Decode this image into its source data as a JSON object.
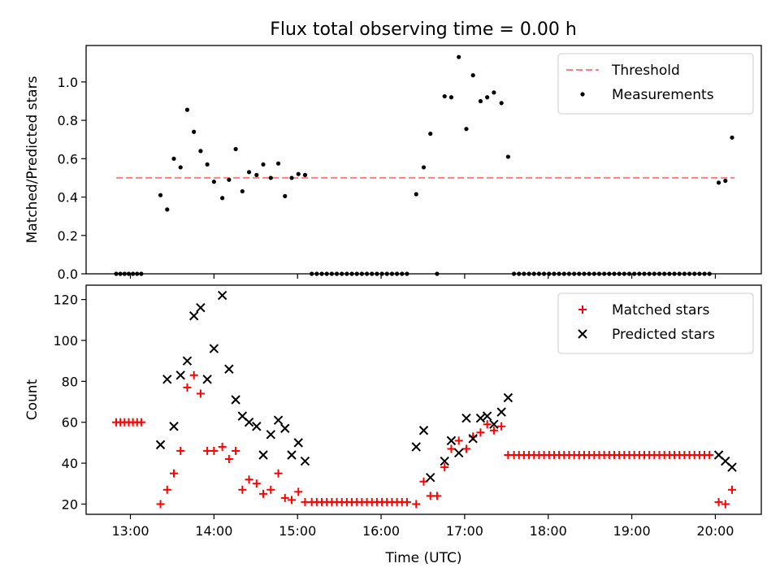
{
  "title": "Flux total observing time = 0.00 h",
  "chart_data": [
    {
      "type": "scatter",
      "ylabel": "Matched/Predicted stars",
      "xlim": [
        12.47,
        20.55
      ],
      "ylim": [
        0,
        1.19
      ],
      "yticks": [
        0.0,
        0.2,
        0.4,
        0.6,
        0.8,
        1.0
      ],
      "yticklabels": [
        "0.0",
        "0.2",
        "0.4",
        "0.6",
        "0.8",
        "1.0"
      ],
      "xticks": [
        13,
        14,
        15,
        16,
        17,
        18,
        19,
        20
      ],
      "show_xticklabels": false,
      "grid": false,
      "legend": "top-right",
      "threshold": {
        "label": "Threshold",
        "y": 0.5,
        "x_start": 12.83,
        "x_end": 20.23,
        "color": "#ff7f7f",
        "style": "dashed"
      },
      "series": [
        {
          "name": "Measurements",
          "color": "#000000",
          "marker": "dot",
          "points": [
            [
              12.83,
              0.0
            ],
            [
              12.88,
              0.0
            ],
            [
              12.93,
              0.0
            ],
            [
              12.98,
              0.0
            ],
            [
              13.03,
              0.0
            ],
            [
              13.08,
              0.0
            ],
            [
              13.13,
              0.0
            ],
            [
              13.36,
              0.41
            ],
            [
              13.44,
              0.335
            ],
            [
              13.52,
              0.6
            ],
            [
              13.6,
              0.555
            ],
            [
              13.68,
              0.855
            ],
            [
              13.76,
              0.74
            ],
            [
              13.84,
              0.64
            ],
            [
              13.92,
              0.57
            ],
            [
              14.0,
              0.48
            ],
            [
              14.1,
              0.395
            ],
            [
              14.18,
              0.49
            ],
            [
              14.26,
              0.65
            ],
            [
              14.34,
              0.43
            ],
            [
              14.42,
              0.53
            ],
            [
              14.51,
              0.515
            ],
            [
              14.59,
              0.57
            ],
            [
              14.68,
              0.5
            ],
            [
              14.77,
              0.575
            ],
            [
              14.85,
              0.405
            ],
            [
              14.93,
              0.5
            ],
            [
              15.01,
              0.52
            ],
            [
              15.09,
              0.515
            ],
            [
              15.17,
              0.0
            ],
            [
              15.23,
              0.0
            ],
            [
              15.29,
              0.0
            ],
            [
              15.35,
              0.0
            ],
            [
              15.41,
              0.0
            ],
            [
              15.47,
              0.0
            ],
            [
              15.53,
              0.0
            ],
            [
              15.59,
              0.0
            ],
            [
              15.65,
              0.0
            ],
            [
              15.71,
              0.0
            ],
            [
              15.77,
              0.0
            ],
            [
              15.83,
              0.0
            ],
            [
              15.89,
              0.0
            ],
            [
              15.95,
              0.0
            ],
            [
              16.01,
              0.0
            ],
            [
              16.07,
              0.0
            ],
            [
              16.13,
              0.0
            ],
            [
              16.19,
              0.0
            ],
            [
              16.25,
              0.0
            ],
            [
              16.31,
              0.0
            ],
            [
              16.42,
              0.415
            ],
            [
              16.51,
              0.555
            ],
            [
              16.59,
              0.73
            ],
            [
              16.67,
              0.0
            ],
            [
              16.76,
              0.925
            ],
            [
              16.84,
              0.92
            ],
            [
              16.93,
              1.13
            ],
            [
              17.02,
              0.755
            ],
            [
              17.1,
              1.035
            ],
            [
              17.19,
              0.9
            ],
            [
              17.27,
              0.92
            ],
            [
              17.35,
              0.945
            ],
            [
              17.44,
              0.89
            ],
            [
              17.52,
              0.61
            ],
            [
              17.59,
              0.0
            ],
            [
              17.65,
              0.0
            ],
            [
              17.71,
              0.0
            ],
            [
              17.77,
              0.0
            ],
            [
              17.83,
              0.0
            ],
            [
              17.89,
              0.0
            ],
            [
              17.95,
              0.0
            ],
            [
              18.01,
              0.0
            ],
            [
              18.07,
              0.0
            ],
            [
              18.13,
              0.0
            ],
            [
              18.19,
              0.0
            ],
            [
              18.25,
              0.0
            ],
            [
              18.31,
              0.0
            ],
            [
              18.37,
              0.0
            ],
            [
              18.43,
              0.0
            ],
            [
              18.49,
              0.0
            ],
            [
              18.55,
              0.0
            ],
            [
              18.61,
              0.0
            ],
            [
              18.67,
              0.0
            ],
            [
              18.73,
              0.0
            ],
            [
              18.79,
              0.0
            ],
            [
              18.85,
              0.0
            ],
            [
              18.91,
              0.0
            ],
            [
              18.97,
              0.0
            ],
            [
              19.03,
              0.0
            ],
            [
              19.09,
              0.0
            ],
            [
              19.15,
              0.0
            ],
            [
              19.21,
              0.0
            ],
            [
              19.27,
              0.0
            ],
            [
              19.33,
              0.0
            ],
            [
              19.39,
              0.0
            ],
            [
              19.45,
              0.0
            ],
            [
              19.51,
              0.0
            ],
            [
              19.57,
              0.0
            ],
            [
              19.63,
              0.0
            ],
            [
              19.69,
              0.0
            ],
            [
              19.75,
              0.0
            ],
            [
              19.81,
              0.0
            ],
            [
              19.87,
              0.0
            ],
            [
              19.93,
              0.0
            ],
            [
              20.04,
              0.475
            ],
            [
              20.12,
              0.485
            ],
            [
              20.2,
              0.71
            ]
          ]
        }
      ]
    },
    {
      "type": "scatter",
      "xlabel": "Time (UTC)",
      "ylabel": "Count",
      "xlim": [
        12.47,
        20.55
      ],
      "ylim": [
        15,
        127
      ],
      "yticks": [
        20,
        40,
        60,
        80,
        100,
        120
      ],
      "yticklabels": [
        "20",
        "40",
        "60",
        "80",
        "100",
        "120"
      ],
      "xticks": [
        13,
        14,
        15,
        16,
        17,
        18,
        19,
        20
      ],
      "xticklabels": [
        "13:00",
        "14:00",
        "15:00",
        "16:00",
        "17:00",
        "18:00",
        "19:00",
        "20:00"
      ],
      "grid": false,
      "legend": "top-right",
      "series": [
        {
          "name": "Matched stars",
          "color": "#ff0000",
          "marker": "plus",
          "points": [
            [
              12.83,
              60
            ],
            [
              12.88,
              60
            ],
            [
              12.93,
              60
            ],
            [
              12.98,
              60
            ],
            [
              13.03,
              60
            ],
            [
              13.08,
              60
            ],
            [
              13.13,
              60
            ],
            [
              13.36,
              20
            ],
            [
              13.44,
              27
            ],
            [
              13.52,
              35
            ],
            [
              13.6,
              46
            ],
            [
              13.68,
              77
            ],
            [
              13.76,
              83
            ],
            [
              13.84,
              74
            ],
            [
              13.92,
              46
            ],
            [
              14.0,
              46
            ],
            [
              14.1,
              48
            ],
            [
              14.18,
              42
            ],
            [
              14.26,
              46
            ],
            [
              14.34,
              27
            ],
            [
              14.42,
              32
            ],
            [
              14.51,
              30
            ],
            [
              14.59,
              25
            ],
            [
              14.68,
              27
            ],
            [
              14.77,
              35
            ],
            [
              14.85,
              23
            ],
            [
              14.93,
              22
            ],
            [
              15.01,
              26
            ],
            [
              15.09,
              21
            ],
            [
              15.17,
              21
            ],
            [
              15.23,
              21
            ],
            [
              15.29,
              21
            ],
            [
              15.35,
              21
            ],
            [
              15.41,
              21
            ],
            [
              15.47,
              21
            ],
            [
              15.53,
              21
            ],
            [
              15.59,
              21
            ],
            [
              15.65,
              21
            ],
            [
              15.71,
              21
            ],
            [
              15.77,
              21
            ],
            [
              15.83,
              21
            ],
            [
              15.89,
              21
            ],
            [
              15.95,
              21
            ],
            [
              16.01,
              21
            ],
            [
              16.07,
              21
            ],
            [
              16.13,
              21
            ],
            [
              16.19,
              21
            ],
            [
              16.25,
              21
            ],
            [
              16.31,
              21
            ],
            [
              16.42,
              20
            ],
            [
              16.51,
              31
            ],
            [
              16.59,
              24
            ],
            [
              16.67,
              24
            ],
            [
              16.76,
              38
            ],
            [
              16.84,
              47
            ],
            [
              16.93,
              51
            ],
            [
              17.02,
              47
            ],
            [
              17.1,
              53
            ],
            [
              17.19,
              55
            ],
            [
              17.27,
              59
            ],
            [
              17.35,
              56
            ],
            [
              17.44,
              58
            ],
            [
              17.52,
              44
            ],
            [
              17.59,
              44
            ],
            [
              17.65,
              44
            ],
            [
              17.71,
              44
            ],
            [
              17.77,
              44
            ],
            [
              17.83,
              44
            ],
            [
              17.89,
              44
            ],
            [
              17.95,
              44
            ],
            [
              18.01,
              44
            ],
            [
              18.07,
              44
            ],
            [
              18.13,
              44
            ],
            [
              18.19,
              44
            ],
            [
              18.25,
              44
            ],
            [
              18.31,
              44
            ],
            [
              18.37,
              44
            ],
            [
              18.43,
              44
            ],
            [
              18.49,
              44
            ],
            [
              18.55,
              44
            ],
            [
              18.61,
              44
            ],
            [
              18.67,
              44
            ],
            [
              18.73,
              44
            ],
            [
              18.79,
              44
            ],
            [
              18.85,
              44
            ],
            [
              18.91,
              44
            ],
            [
              18.97,
              44
            ],
            [
              19.03,
              44
            ],
            [
              19.09,
              44
            ],
            [
              19.15,
              44
            ],
            [
              19.21,
              44
            ],
            [
              19.27,
              44
            ],
            [
              19.33,
              44
            ],
            [
              19.39,
              44
            ],
            [
              19.45,
              44
            ],
            [
              19.51,
              44
            ],
            [
              19.57,
              44
            ],
            [
              19.63,
              44
            ],
            [
              19.69,
              44
            ],
            [
              19.75,
              44
            ],
            [
              19.81,
              44
            ],
            [
              19.87,
              44
            ],
            [
              19.93,
              44
            ],
            [
              20.04,
              21
            ],
            [
              20.12,
              20
            ],
            [
              20.2,
              27
            ]
          ]
        },
        {
          "name": "Predicted stars",
          "color": "#000000",
          "marker": "x",
          "points": [
            [
              13.36,
              49
            ],
            [
              13.44,
              81
            ],
            [
              13.52,
              58
            ],
            [
              13.6,
              83
            ],
            [
              13.68,
              90
            ],
            [
              13.76,
              112
            ],
            [
              13.84,
              116
            ],
            [
              13.92,
              81
            ],
            [
              14.0,
              96
            ],
            [
              14.1,
              122
            ],
            [
              14.18,
              86
            ],
            [
              14.26,
              71
            ],
            [
              14.34,
              63
            ],
            [
              14.42,
              60
            ],
            [
              14.51,
              58
            ],
            [
              14.59,
              44
            ],
            [
              14.68,
              54
            ],
            [
              14.77,
              61
            ],
            [
              14.85,
              57
            ],
            [
              14.93,
              44
            ],
            [
              15.01,
              50
            ],
            [
              15.09,
              41
            ],
            [
              16.42,
              48
            ],
            [
              16.51,
              56
            ],
            [
              16.59,
              33
            ],
            [
              16.76,
              41
            ],
            [
              16.84,
              51
            ],
            [
              16.93,
              45
            ],
            [
              17.02,
              62
            ],
            [
              17.1,
              52
            ],
            [
              17.19,
              62
            ],
            [
              17.27,
              63
            ],
            [
              17.35,
              59
            ],
            [
              17.44,
              65
            ],
            [
              17.52,
              72
            ],
            [
              20.04,
              44
            ],
            [
              20.12,
              41
            ],
            [
              20.2,
              38
            ]
          ]
        }
      ]
    }
  ]
}
